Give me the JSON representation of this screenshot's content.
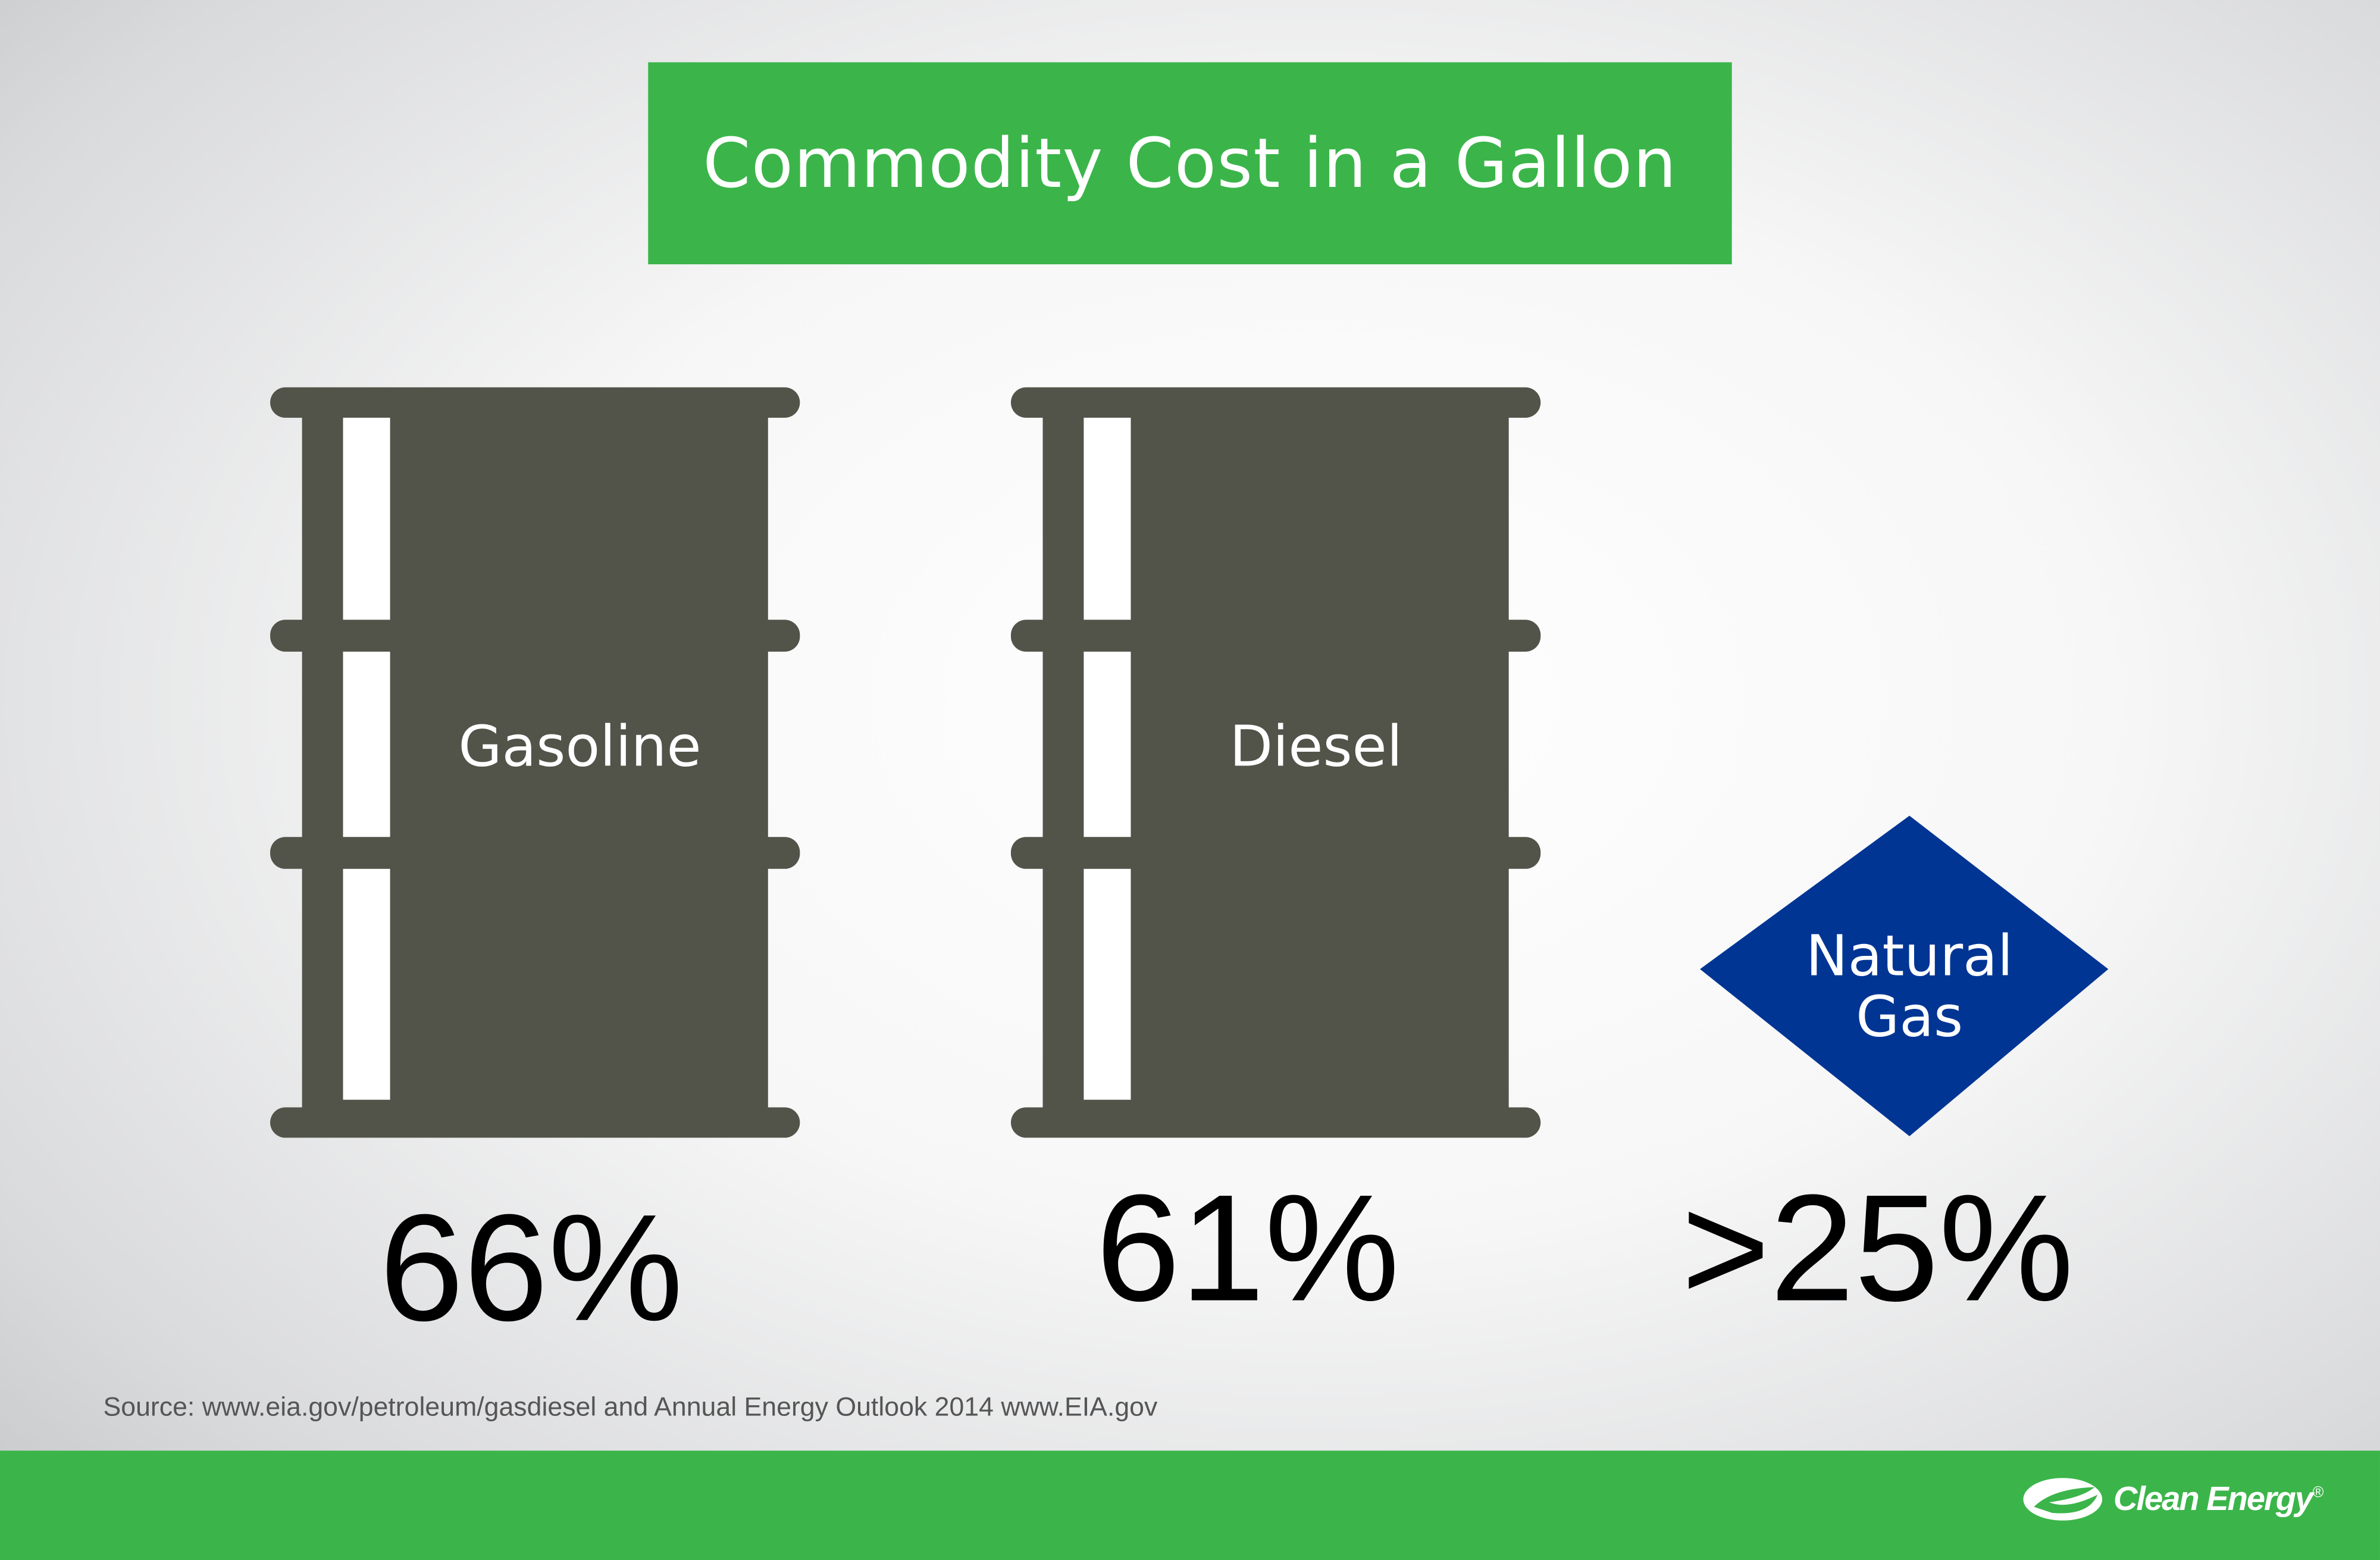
{
  "title": "Commodity Cost in a Gallon",
  "items": [
    {
      "label": "Gasoline",
      "value": "66%",
      "icon": "oil-barrel-icon"
    },
    {
      "label": "Diesel",
      "value": "61%",
      "icon": "oil-barrel-icon"
    },
    {
      "label_line1": "Natural",
      "label_line2": "Gas",
      "value": ">25%",
      "icon": "diamond-icon"
    }
  ],
  "source": "Source: www.eia.gov/petroleum/gasdiesel and Annual Energy Outlook 2014 www.EIA.gov",
  "logo": {
    "text": "Clean Energy",
    "mark": "®"
  },
  "colors": {
    "green": "#3bb54a",
    "barrel": "#525349",
    "diamond": "#003594"
  }
}
